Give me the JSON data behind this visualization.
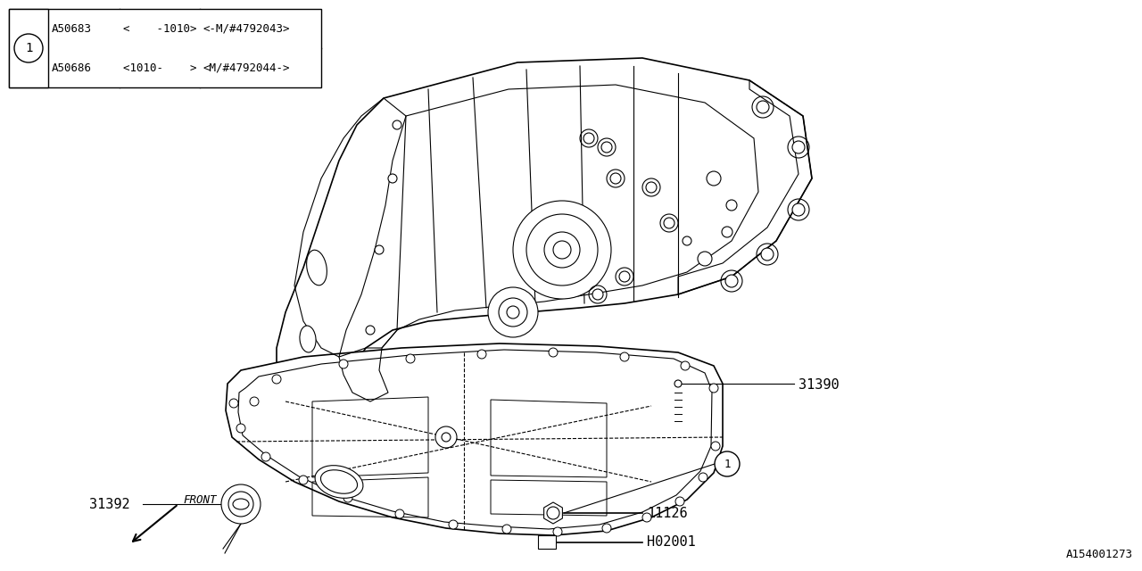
{
  "background_color": "#ffffff",
  "line_color": "#000000",
  "diagram_id": "A154001273",
  "table": {
    "rows": [
      {
        "part": "A50683",
        "range": "<    -1010>",
        "model": "<-M/#4792043>"
      },
      {
        "part": "A50686",
        "range": "<1010-    >",
        "model": "<M/#4792044->"
      }
    ]
  },
  "label_fontsize": 11,
  "table_fontsize": 9
}
